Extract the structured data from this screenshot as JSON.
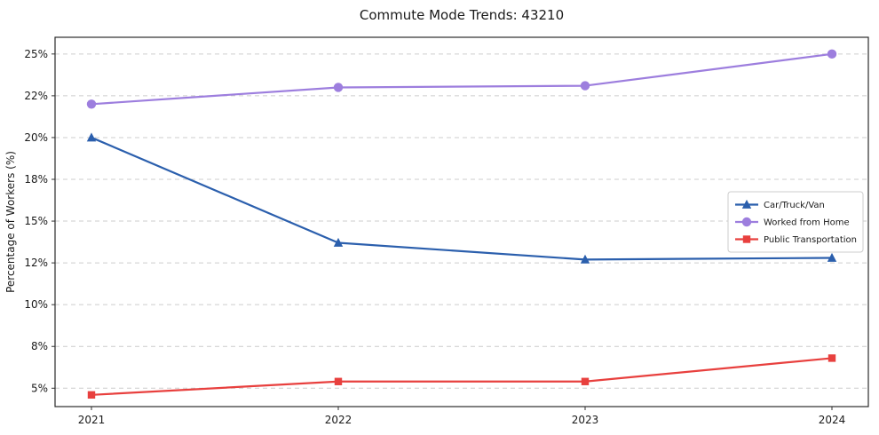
{
  "title": "Commute Mode Trends: 43210",
  "chart_data": {
    "type": "line",
    "title": "Commute Mode Trends: 43210",
    "categories": [
      "2021",
      "2022",
      "2023",
      "2024"
    ],
    "series": [
      {
        "name": "Car/Truck/Van",
        "values": [
          20.0,
          13.7,
          12.7,
          12.8
        ],
        "color": "#2b5fad",
        "marker": "triangle"
      },
      {
        "name": "Worked from Home",
        "values": [
          22.0,
          23.0,
          23.1,
          25.0
        ],
        "color": "#9d7ede",
        "marker": "circle"
      },
      {
        "name": "Public Transportation",
        "values": [
          4.6,
          5.4,
          5.4,
          6.8
        ],
        "color": "#e8403e",
        "marker": "square"
      }
    ],
    "xlabel": "",
    "ylabel": "Percentage of Workers (%)",
    "ylim": [
      3.9,
      26.0
    ],
    "yticks": [
      {
        "value": 5,
        "label": "5%"
      },
      {
        "value": 7.5,
        "label": "8%"
      },
      {
        "value": 10,
        "label": "10%"
      },
      {
        "value": 12.5,
        "label": "12%"
      },
      {
        "value": 15,
        "label": "15%"
      },
      {
        "value": 17.5,
        "label": "18%"
      },
      {
        "value": 20,
        "label": "20%"
      },
      {
        "value": 22.5,
        "label": "22%"
      },
      {
        "value": 25,
        "label": "25%"
      }
    ],
    "grid": true,
    "grid_style": "dashed",
    "grid_color": "#cccccc",
    "legend_position": "center-right"
  }
}
